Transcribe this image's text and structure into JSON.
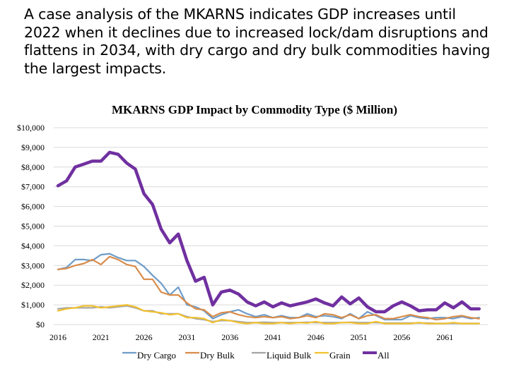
{
  "slide": {
    "title": "A case analysis of the MKARNS indicates GDP increases until 2022 when it declines due to increased lock/dam disruptions and flattens in 2034, with dry cargo and dry bulk commodities having the largest impacts."
  },
  "chart_data": {
    "type": "line",
    "title": "MKARNS GDP Impact by Commodity Type ($ Million)",
    "xlabel": "",
    "ylabel": "",
    "x_start": 2016,
    "x": [
      2016,
      2017,
      2018,
      2019,
      2020,
      2021,
      2022,
      2023,
      2024,
      2025,
      2026,
      2027,
      2028,
      2029,
      2030,
      2031,
      2032,
      2033,
      2034,
      2035,
      2036,
      2037,
      2038,
      2039,
      2040,
      2041,
      2042,
      2043,
      2044,
      2045,
      2046,
      2047,
      2048,
      2049,
      2050,
      2051,
      2052,
      2053,
      2054,
      2055,
      2056,
      2057,
      2058,
      2059,
      2060,
      2061,
      2062,
      2063,
      2064,
      2065
    ],
    "x_ticks": [
      "2016",
      "2021",
      "2026",
      "2031",
      "2036",
      "2041",
      "2046",
      "2051",
      "2056",
      "2061"
    ],
    "y_ticks": [
      "$0",
      "$1,000",
      "$2,000",
      "$3,000",
      "$4,000",
      "$5,000",
      "$6,000",
      "$7,000",
      "$8,000",
      "$9,000",
      "$10,000"
    ],
    "ylim": [
      0,
      10000
    ],
    "grid": true,
    "legend_position": "bottom",
    "series": [
      {
        "name": "Dry Cargo",
        "color": "#6e9cc8",
        "values": [
          2800,
          2900,
          3300,
          3300,
          3250,
          3550,
          3600,
          3400,
          3250,
          3250,
          2950,
          2500,
          2100,
          1500,
          1900,
          1000,
          900,
          700,
          300,
          500,
          650,
          750,
          550,
          400,
          500,
          350,
          450,
          350,
          350,
          550,
          400,
          450,
          400,
          300,
          550,
          300,
          650,
          450,
          250,
          250,
          250,
          450,
          350,
          300,
          350,
          350,
          300,
          400,
          300,
          350
        ]
      },
      {
        "name": "Dry Bulk",
        "color": "#d98c4a",
        "values": [
          2800,
          2850,
          3000,
          3100,
          3300,
          3050,
          3450,
          3300,
          3050,
          2950,
          2300,
          2300,
          1650,
          1500,
          1500,
          1100,
          800,
          750,
          400,
          600,
          650,
          500,
          400,
          350,
          400,
          350,
          400,
          300,
          350,
          450,
          350,
          550,
          500,
          350,
          500,
          300,
          450,
          500,
          300,
          300,
          400,
          500,
          400,
          350,
          250,
          300,
          400,
          450,
          350,
          300
        ]
      },
      {
        "name": "Liquid Bulk",
        "color": "#a5a5a5",
        "values": [
          800,
          850,
          850,
          850,
          850,
          900,
          850,
          900,
          950,
          850,
          700,
          700,
          550,
          550,
          550,
          400,
          300,
          250,
          150,
          200,
          200,
          150,
          100,
          100,
          120,
          100,
          100,
          100,
          100,
          120,
          100,
          100,
          100,
          100,
          120,
          100,
          100,
          100,
          80,
          80,
          80,
          80,
          80,
          80,
          60,
          60,
          60,
          60,
          60,
          60
        ]
      },
      {
        "name": "Grain",
        "color": "#f2c12e",
        "values": [
          700,
          800,
          850,
          950,
          950,
          850,
          900,
          950,
          1000,
          900,
          700,
          650,
          600,
          500,
          550,
          350,
          350,
          300,
          100,
          250,
          200,
          100,
          50,
          100,
          50,
          50,
          100,
          50,
          100,
          80,
          150,
          50,
          50,
          100,
          100,
          50,
          50,
          150,
          50,
          50,
          50,
          50,
          100,
          50,
          50,
          50,
          100,
          50,
          50,
          50
        ]
      },
      {
        "name": "All",
        "color": "#7030a0",
        "values": [
          7050,
          7300,
          8000,
          8150,
          8300,
          8300,
          8750,
          8650,
          8200,
          7900,
          6650,
          6100,
          4850,
          4150,
          4600,
          3250,
          2200,
          2400,
          1000,
          1650,
          1750,
          1550,
          1150,
          950,
          1150,
          900,
          1100,
          950,
          1050,
          1150,
          1300,
          1100,
          950,
          1400,
          1050,
          1350,
          900,
          650,
          650,
          950,
          1150,
          950,
          700,
          750,
          750,
          1100,
          850,
          1150,
          800,
          800
        ]
      }
    ]
  }
}
